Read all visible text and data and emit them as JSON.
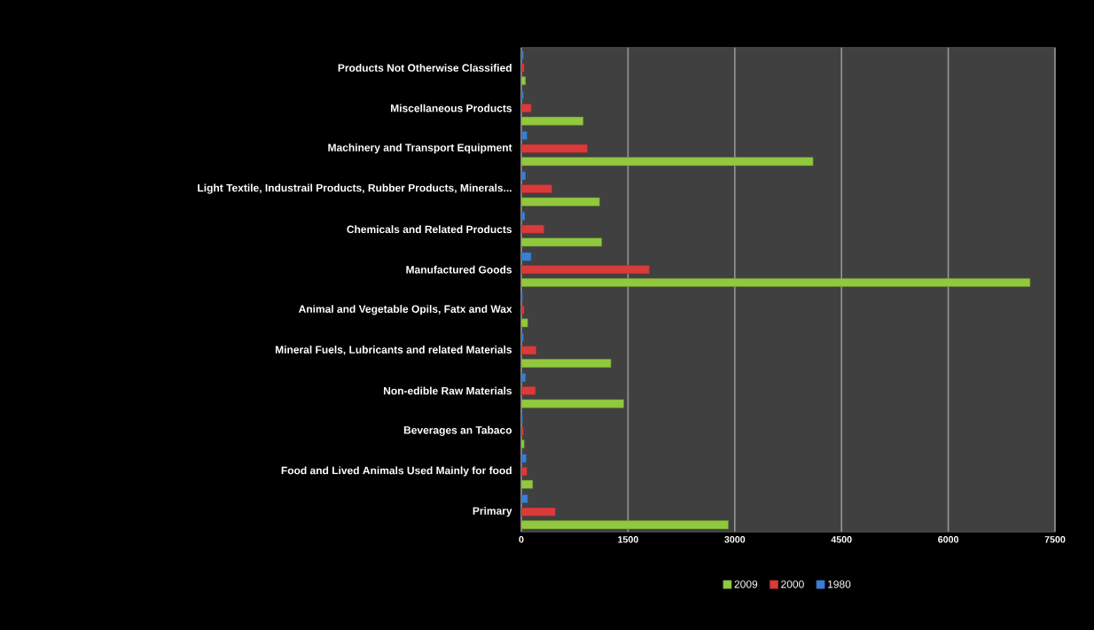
{
  "chart_data": {
    "type": "bar",
    "orientation": "horizontal",
    "categories": [
      "Products Not Otherwise Classified",
      "Miscellaneous Products",
      "Machinery and Transport Equipment",
      "Light Textile, Industrail Products, Rubber Products, Minerals...",
      "Chemicals and Related Products",
      "Manufactured Goods",
      "Animal and Vegetable Opils, Fatx and Wax",
      "Mineral Fuels, Lubricants and related Materials",
      "Non-edible Raw Materials",
      "Beverages an Tabaco",
      "Food and Lived Animals Used Mainly for food",
      "Primary"
    ],
    "series": [
      {
        "name": "2009",
        "color": "#92c83e",
        "values": [
          60,
          870,
          4100,
          1100,
          1130,
          7150,
          90,
          1260,
          1440,
          40,
          160,
          2910
        ]
      },
      {
        "name": "2000",
        "color": "#d93b3b",
        "values": [
          40,
          140,
          930,
          430,
          320,
          1800,
          40,
          210,
          200,
          30,
          80,
          480
        ]
      },
      {
        "name": "1980",
        "color": "#3b7fd4",
        "values": [
          30,
          30,
          80,
          60,
          50,
          140,
          20,
          30,
          60,
          20,
          70,
          90
        ]
      }
    ],
    "xlim": [
      0,
      7500
    ],
    "xticks": [
      0,
      1500,
      3000,
      4500,
      6000,
      7500
    ],
    "grid": "x",
    "legend": "bottom"
  }
}
